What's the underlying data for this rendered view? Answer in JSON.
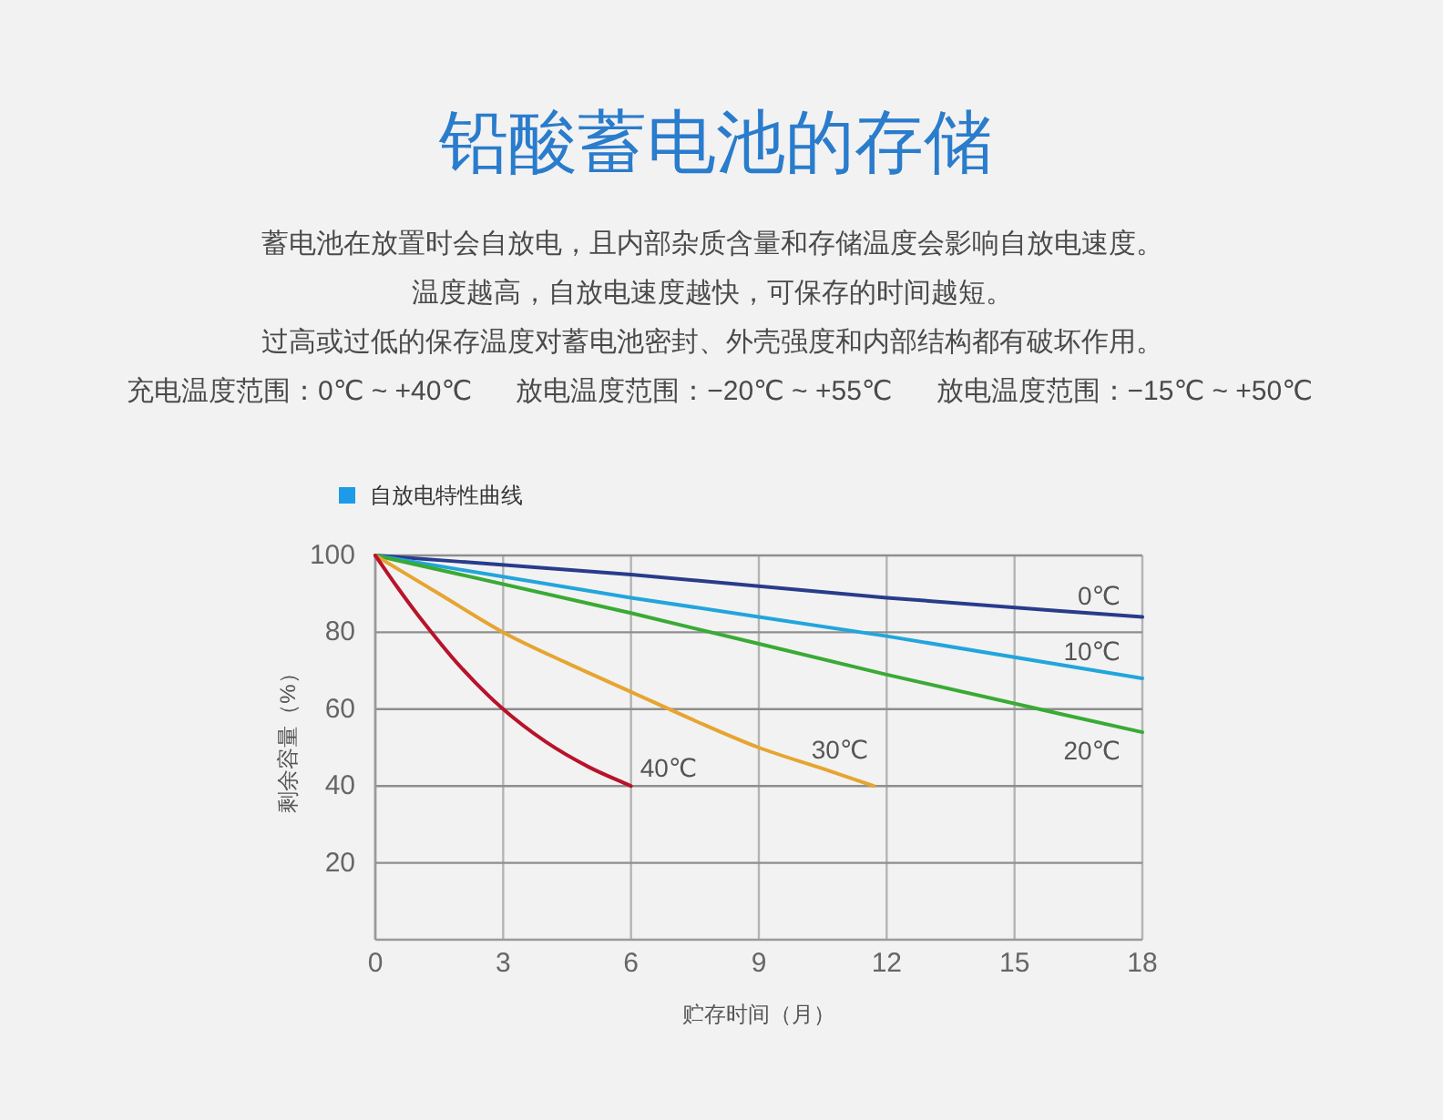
{
  "chart_data": {
    "type": "line",
    "title": "铅酸蓄电池的存储",
    "subtitle": "蓄电池在放置时会自放电，且内部杂质含量和存储温度会影响自放电速度。",
    "annotations": [
      "温度越高，自放电速度越快，可保存的时间越短。",
      "过高或过低的保存温度对蓄电池密封、外壳强度和内部结构都有破坏作用。",
      "充电温度范围：0℃ ~ +40℃",
      "放电温度范围：−20℃ ~ +55℃",
      "放电温度范围：−15℃ ~ +50℃"
    ],
    "legend_title": "自放电特性曲线",
    "xlabel": "贮存时间（月）",
    "ylabel": "剩余容量（%）",
    "xlim": [
      0,
      18
    ],
    "xticks": [
      0,
      3,
      6,
      9,
      12,
      15,
      18
    ],
    "ylim": [
      0,
      100
    ],
    "yticks": [
      20,
      40,
      60,
      80,
      100
    ],
    "grid": true,
    "line_style": "solid",
    "series": [
      {
        "name": "0℃",
        "color": "#283c8c",
        "x": [
          0,
          6,
          12,
          18
        ],
        "values": [
          100,
          95,
          89,
          84
        ]
      },
      {
        "name": "10℃",
        "color": "#22a5dc",
        "x": [
          0,
          6,
          12,
          18
        ],
        "values": [
          100,
          89,
          79,
          68
        ]
      },
      {
        "name": "20℃",
        "color": "#3aaa35",
        "x": [
          0,
          6,
          12,
          18
        ],
        "values": [
          100,
          85,
          69,
          54
        ]
      },
      {
        "name": "30℃",
        "color": "#e6a531",
        "x": [
          0,
          1.5,
          3,
          4.5,
          6,
          7.5,
          9,
          10.5,
          11.7
        ],
        "values": [
          100,
          90,
          80,
          72,
          64.5,
          57,
          50,
          44.5,
          40
        ]
      },
      {
        "name": "40℃",
        "color": "#b8132b",
        "x": [
          0,
          0.5,
          1,
          2,
          3,
          4,
          5,
          6
        ],
        "values": [
          100,
          92,
          84.5,
          71,
          60,
          51.5,
          45,
          40
        ]
      }
    ]
  }
}
